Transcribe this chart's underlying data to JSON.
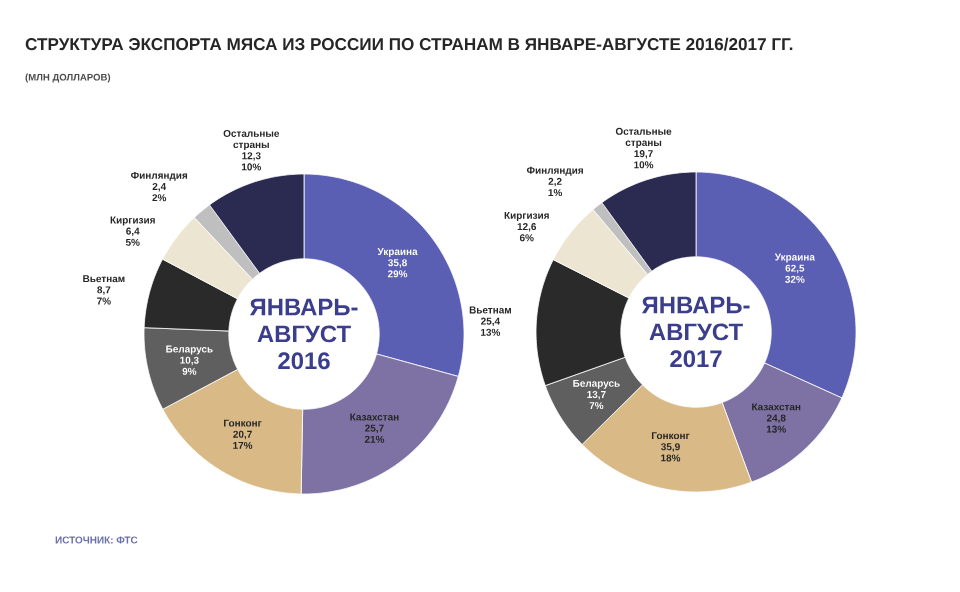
{
  "chart_data": [
    {
      "type": "donut",
      "title": "СТРУКТУРА ЭКСПОРТА МЯСА ИЗ РОССИИ ПО СТРАНАМ В ЯНВАРЕ-АВГУСТЕ 2016/2017 ГГ.",
      "subtitle": "(МЛН ДОЛЛАРОВ)",
      "categories": [
        "Украина",
        "Казахстан",
        "Гонконг",
        "Беларусь",
        "Вьетнам",
        "Киргизия",
        "Финляндия",
        "Остальные страны"
      ],
      "values": [
        35.8,
        25.7,
        20.7,
        10.3,
        8.7,
        6.4,
        2.4,
        12.3
      ],
      "value_labels": [
        "35,8",
        "25,7",
        "20,7",
        "10,3",
        "8,7",
        "6,4",
        "2,4",
        "12,3"
      ],
      "colors": [
        "#5b5fb3",
        "#7d72a3",
        "#d9ba86",
        "#5f5f5f",
        "#2a2a2a",
        "#ece5d2",
        "#bfbfbf",
        "#2b2b52"
      ],
      "annotations": [
        "29%",
        "21%",
        "17%",
        "9%",
        "7%",
        "5%",
        "2%",
        "10%",
        "ЯНВАРЬ-АВГУСТ 2016",
        "ИСТОЧНИК: ФТС"
      ]
    },
    {
      "type": "donut",
      "categories": [
        "Украина",
        "Казахстан",
        "Гонконг",
        "Беларусь",
        "Вьетнам",
        "Киргизия",
        "Финляндия",
        "Остальные страны"
      ],
      "values": [
        62.5,
        24.8,
        35.9,
        13.7,
        25.4,
        12.6,
        2.2,
        19.7
      ],
      "value_labels": [
        "62,5",
        "24,8",
        "35,9",
        "13,7",
        "25,4",
        "12,6",
        "2,2",
        "19,7"
      ],
      "colors": [
        "#5b5fb3",
        "#7d72a3",
        "#d9ba86",
        "#5f5f5f",
        "#2a2a2a",
        "#ece5d2",
        "#bfbfbf",
        "#2b2b52"
      ],
      "annotations": [
        "32%",
        "13%",
        "18%",
        "7%",
        "13%",
        "6%",
        "1%",
        "10%",
        "ЯНВАРЬ-АВГУСТ 2017"
      ]
    }
  ]
}
